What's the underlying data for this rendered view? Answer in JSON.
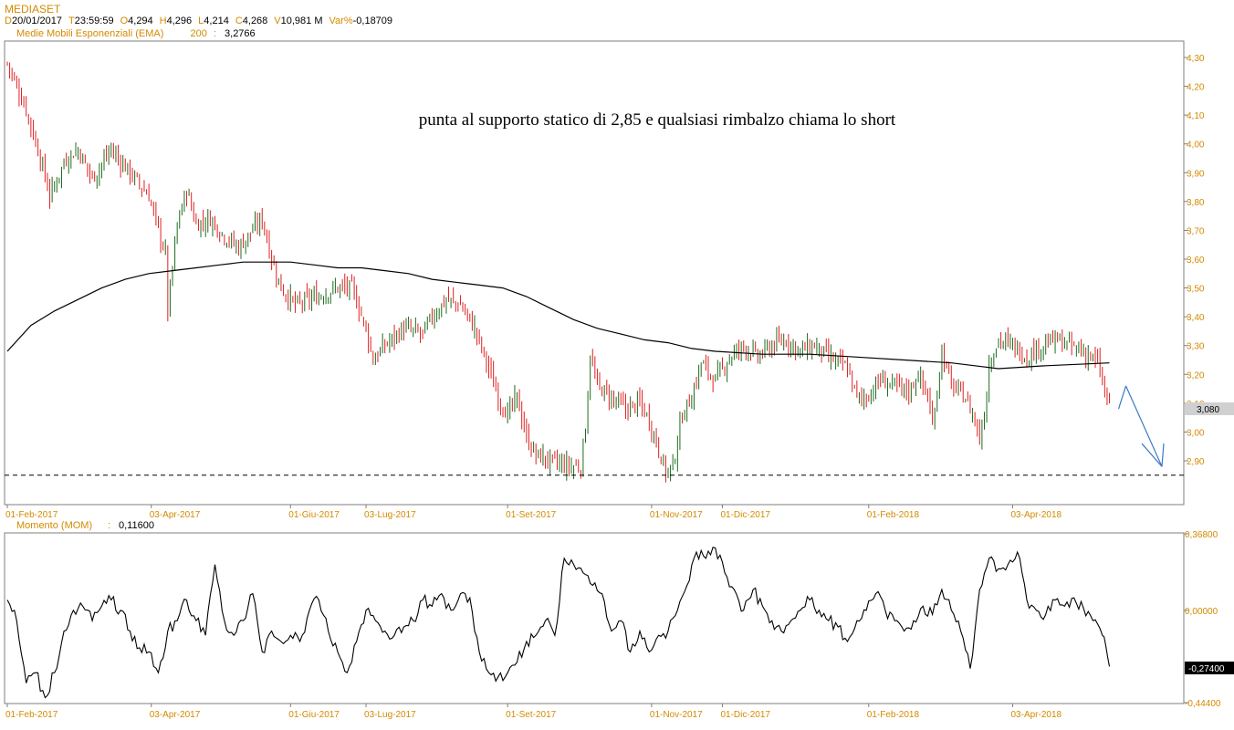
{
  "header": {
    "symbol": "MEDIASET",
    "ohlc": [
      {
        "k": "D",
        "v": "20/01/2017"
      },
      {
        "k": "T",
        "v": "23:59:59"
      },
      {
        "k": "O",
        "v": "4,294"
      },
      {
        "k": "H",
        "v": "4,296"
      },
      {
        "k": "L",
        "v": "4,214"
      },
      {
        "k": "C",
        "v": "4,268"
      },
      {
        "k": "V",
        "v": "10,981 M"
      },
      {
        "k": "Var%",
        "v": "-0,18709"
      }
    ],
    "ema_label": "Medie Mobili Esponenziali (EMA)",
    "ema_period": "200",
    "ema_sep": ":",
    "ema_value": "3,2766",
    "mom_label": "Momento (MOM)",
    "mom_sep": ":",
    "mom_value": "0,11600"
  },
  "colors": {
    "up": "#1e6b1e",
    "down": "#e02020",
    "axis_text": "#d48a00",
    "arrow": "#3a78c8"
  },
  "chart_data": [
    {
      "type": "ohlc",
      "annotation": "punta al supporto statico di 2,85 e qualsiasi rimbalzo chiama lo short",
      "ylim": [
        2.78,
        4.35
      ],
      "yticks": [
        "4,30",
        "4,20",
        "4,10",
        "4,00",
        "3,90",
        "3,80",
        "3,70",
        "3,60",
        "3,50",
        "3,40",
        "3,30",
        "3,20",
        "3,10",
        "3,00",
        "2,90"
      ],
      "ytick_values": [
        4.3,
        4.2,
        4.1,
        4.0,
        3.9,
        3.8,
        3.7,
        3.6,
        3.5,
        3.4,
        3.3,
        3.2,
        3.1,
        3.0,
        2.9
      ],
      "last_price": "3,080",
      "last_price_value": 3.08,
      "support_level": 2.85,
      "xticks": [
        "01-Feb-2017",
        "03-Apr-2017",
        "01-Giu-2017",
        "03-Lug-2017",
        "01-Set-2017",
        "01-Nov-2017",
        "01-Dic-2017",
        "01-Feb-2018",
        "03-Apr-2018"
      ],
      "xtick_days": [
        0,
        61,
        120,
        152,
        212,
        273,
        303,
        365,
        426
      ],
      "x_days_max": 490,
      "close_anchors": [
        [
          0,
          4.28
        ],
        [
          8,
          4.12
        ],
        [
          14,
          3.95
        ],
        [
          18,
          3.82
        ],
        [
          25,
          3.95
        ],
        [
          30,
          3.98
        ],
        [
          36,
          3.88
        ],
        [
          44,
          3.98
        ],
        [
          50,
          3.92
        ],
        [
          56,
          3.86
        ],
        [
          60,
          3.82
        ],
        [
          64,
          3.7
        ],
        [
          67,
          3.62
        ],
        [
          68,
          3.42
        ],
        [
          72,
          3.72
        ],
        [
          76,
          3.84
        ],
        [
          80,
          3.72
        ],
        [
          86,
          3.74
        ],
        [
          92,
          3.68
        ],
        [
          98,
          3.64
        ],
        [
          104,
          3.7
        ],
        [
          108,
          3.74
        ],
        [
          112,
          3.6
        ],
        [
          116,
          3.5
        ],
        [
          122,
          3.44
        ],
        [
          128,
          3.46
        ],
        [
          134,
          3.48
        ],
        [
          140,
          3.5
        ],
        [
          146,
          3.5
        ],
        [
          152,
          3.36
        ],
        [
          155,
          3.25
        ],
        [
          160,
          3.3
        ],
        [
          168,
          3.36
        ],
        [
          176,
          3.34
        ],
        [
          180,
          3.4
        ],
        [
          186,
          3.46
        ],
        [
          192,
          3.44
        ],
        [
          198,
          3.36
        ],
        [
          204,
          3.22
        ],
        [
          208,
          3.12
        ],
        [
          212,
          3.06
        ],
        [
          216,
          3.12
        ],
        [
          220,
          2.98
        ],
        [
          224,
          2.92
        ],
        [
          230,
          2.9
        ],
        [
          238,
          2.88
        ],
        [
          243,
          2.88
        ],
        [
          245,
          3.02
        ],
        [
          247,
          3.26
        ],
        [
          250,
          3.16
        ],
        [
          256,
          3.12
        ],
        [
          262,
          3.08
        ],
        [
          268,
          3.1
        ],
        [
          272,
          3.04
        ],
        [
          276,
          2.94
        ],
        [
          279,
          2.86
        ],
        [
          282,
          2.88
        ],
        [
          286,
          3.06
        ],
        [
          290,
          3.12
        ],
        [
          294,
          3.24
        ],
        [
          300,
          3.18
        ],
        [
          306,
          3.26
        ],
        [
          312,
          3.3
        ],
        [
          318,
          3.26
        ],
        [
          324,
          3.3
        ],
        [
          330,
          3.32
        ],
        [
          336,
          3.28
        ],
        [
          342,
          3.3
        ],
        [
          348,
          3.26
        ],
        [
          356,
          3.22
        ],
        [
          360,
          3.12
        ],
        [
          364,
          3.12
        ],
        [
          370,
          3.18
        ],
        [
          376,
          3.16
        ],
        [
          382,
          3.14
        ],
        [
          386,
          3.2
        ],
        [
          390,
          3.12
        ],
        [
          392,
          3.02
        ],
        [
          396,
          3.28
        ],
        [
          400,
          3.16
        ],
        [
          406,
          3.12
        ],
        [
          410,
          3.04
        ],
        [
          412,
          2.98
        ],
        [
          414,
          3.06
        ],
        [
          416,
          3.24
        ],
        [
          420,
          3.32
        ],
        [
          426,
          3.3
        ],
        [
          432,
          3.26
        ],
        [
          438,
          3.3
        ],
        [
          444,
          3.32
        ],
        [
          450,
          3.3
        ],
        [
          456,
          3.28
        ],
        [
          462,
          3.24
        ],
        [
          465,
          3.14
        ],
        [
          467,
          3.08
        ]
      ],
      "ema_points": [
        [
          0,
          3.28
        ],
        [
          10,
          3.37
        ],
        [
          20,
          3.42
        ],
        [
          30,
          3.46
        ],
        [
          40,
          3.5
        ],
        [
          50,
          3.53
        ],
        [
          60,
          3.55
        ],
        [
          70,
          3.56
        ],
        [
          80,
          3.57
        ],
        [
          90,
          3.58
        ],
        [
          100,
          3.59
        ],
        [
          110,
          3.59
        ],
        [
          120,
          3.59
        ],
        [
          130,
          3.58
        ],
        [
          140,
          3.57
        ],
        [
          150,
          3.57
        ],
        [
          160,
          3.56
        ],
        [
          170,
          3.55
        ],
        [
          180,
          3.53
        ],
        [
          190,
          3.52
        ],
        [
          200,
          3.51
        ],
        [
          210,
          3.5
        ],
        [
          220,
          3.47
        ],
        [
          230,
          3.43
        ],
        [
          240,
          3.39
        ],
        [
          250,
          3.36
        ],
        [
          260,
          3.34
        ],
        [
          270,
          3.32
        ],
        [
          280,
          3.31
        ],
        [
          290,
          3.29
        ],
        [
          300,
          3.28
        ],
        [
          320,
          3.27
        ],
        [
          340,
          3.27
        ],
        [
          360,
          3.26
        ],
        [
          380,
          3.25
        ],
        [
          400,
          3.24
        ],
        [
          410,
          3.23
        ],
        [
          420,
          3.22
        ],
        [
          440,
          3.23
        ],
        [
          467,
          3.24
        ]
      ]
    },
    {
      "type": "line",
      "name": "Momento (MOM)",
      "ylim": [
        -0.445,
        0.375
      ],
      "yticks": [
        "0,36800",
        "0,00000",
        "-0,44400"
      ],
      "ytick_values": [
        0.368,
        0.0,
        -0.444
      ],
      "last_value": "-0,27400",
      "last_value_num": -0.274,
      "xticks": [
        "01-Feb-2017",
        "03-Apr-2017",
        "01-Giu-2017",
        "03-Lug-2017",
        "01-Set-2017",
        "01-Nov-2017",
        "01-Dic-2017",
        "01-Feb-2018",
        "03-Apr-2018"
      ],
      "x": [
        0,
        4,
        8,
        12,
        16,
        20,
        24,
        28,
        32,
        36,
        40,
        44,
        48,
        52,
        56,
        60,
        64,
        68,
        72,
        76,
        80,
        84,
        88,
        92,
        96,
        100,
        104,
        108,
        112,
        116,
        120,
        124,
        128,
        132,
        136,
        140,
        144,
        148,
        152,
        156,
        160,
        164,
        168,
        172,
        176,
        180,
        184,
        188,
        192,
        196,
        200,
        204,
        208,
        212,
        216,
        220,
        224,
        228,
        232,
        236,
        240,
        244,
        248,
        252,
        256,
        260,
        264,
        268,
        272,
        276,
        280,
        284,
        288,
        292,
        296,
        300,
        304,
        308,
        312,
        316,
        320,
        324,
        328,
        332,
        336,
        340,
        344,
        348,
        352,
        356,
        360,
        364,
        368,
        372,
        376,
        380,
        384,
        388,
        392,
        396,
        400,
        404,
        408,
        412,
        416,
        420,
        424,
        428,
        432,
        436,
        440,
        444,
        448,
        452,
        456,
        460,
        464,
        467
      ],
      "y": [
        0.05,
        -0.05,
        -0.35,
        -0.3,
        -0.42,
        -0.3,
        -0.1,
        0.0,
        0.02,
        -0.05,
        0.02,
        0.05,
        0.0,
        -0.1,
        -0.18,
        -0.2,
        -0.3,
        -0.1,
        -0.05,
        0.05,
        -0.05,
        -0.12,
        0.22,
        -0.05,
        -0.12,
        -0.05,
        0.08,
        -0.2,
        -0.1,
        -0.15,
        -0.12,
        -0.15,
        0.0,
        0.05,
        -0.1,
        -0.2,
        -0.3,
        -0.15,
        0.0,
        -0.05,
        -0.1,
        -0.12,
        -0.08,
        -0.05,
        0.05,
        0.02,
        0.08,
        0.0,
        0.08,
        0.06,
        -0.2,
        -0.3,
        -0.32,
        -0.3,
        -0.25,
        -0.15,
        -0.12,
        -0.05,
        -0.12,
        0.25,
        0.22,
        0.18,
        0.12,
        0.08,
        -0.1,
        -0.05,
        -0.2,
        -0.1,
        -0.2,
        -0.12,
        -0.1,
        0.0,
        0.12,
        0.28,
        0.25,
        0.3,
        0.18,
        0.1,
        0.0,
        0.1,
        0.02,
        -0.05,
        -0.1,
        -0.05,
        0.0,
        0.05,
        0.0,
        -0.05,
        -0.08,
        -0.15,
        -0.05,
        0.0,
        0.08,
        0.0,
        -0.05,
        -0.1,
        -0.05,
        0.02,
        -0.02,
        0.1,
        0.0,
        -0.1,
        -0.28,
        0.1,
        0.25,
        0.2,
        0.22,
        0.28,
        0.05,
        0.0,
        -0.02,
        0.05,
        0.02,
        0.06,
        0.01,
        -0.05,
        -0.12,
        -0.27
      ]
    }
  ]
}
